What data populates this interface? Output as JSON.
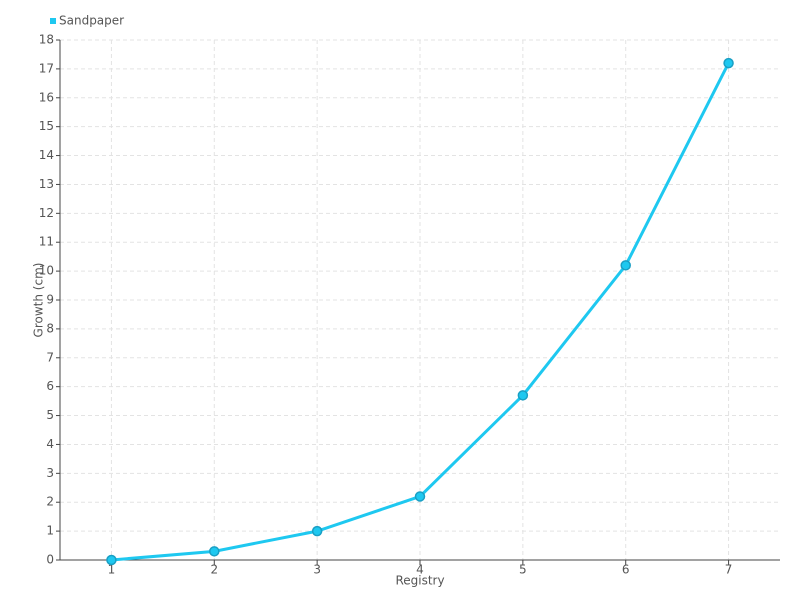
{
  "chart_data": {
    "type": "line",
    "x": [
      1,
      2,
      3,
      4,
      5,
      6,
      7
    ],
    "series": [
      {
        "name": "Sandpaper",
        "color": "#1ec8f0",
        "values": [
          0,
          0.3,
          1,
          2.2,
          5.7,
          10.2,
          17.2
        ]
      }
    ],
    "xlabel": "Registry",
    "ylabel": "Growth (cm)",
    "xlim": [
      0.5,
      7.5
    ],
    "xticks": [
      1,
      2,
      3,
      4,
      5,
      6,
      7
    ],
    "ylim": [
      0,
      18
    ],
    "yticks": [
      0,
      1,
      2,
      3,
      4,
      5,
      6,
      7,
      8,
      9,
      10,
      11,
      12,
      13,
      14,
      15,
      16,
      17,
      18
    ],
    "grid": true,
    "legend": "top-left"
  }
}
